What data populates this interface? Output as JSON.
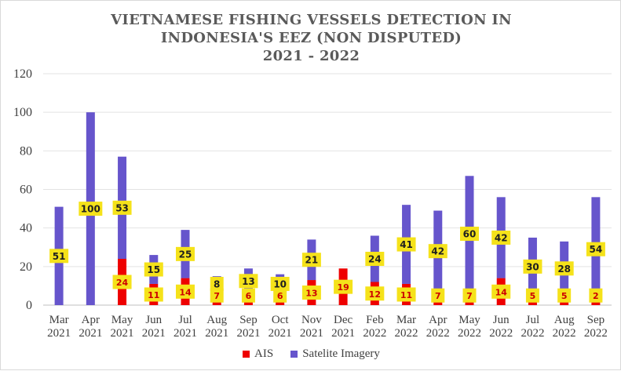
{
  "colors": {
    "ais": "#ee0000",
    "satellite": "#6655cc",
    "label_bg": "#f5e21a",
    "grid": "#e3e3e3"
  },
  "chart_data": {
    "type": "bar",
    "title_lines": [
      "VIETNAMESE FISHING VESSELS DETECTION IN",
      "INDONESIA'S EEZ (NON DISPUTED)",
      "2021 - 2022"
    ],
    "xlabel": "",
    "ylabel": "",
    "ylim": [
      0,
      120
    ],
    "yticks": [
      0,
      20,
      40,
      60,
      80,
      100,
      120
    ],
    "grid": true,
    "legend_position": "bottom",
    "categories": [
      [
        "Mar",
        "2021"
      ],
      [
        "Apr",
        "2021"
      ],
      [
        "May",
        "2021"
      ],
      [
        "Jun",
        "2021"
      ],
      [
        "Jul",
        "2021"
      ],
      [
        "Aug",
        "2021"
      ],
      [
        "Sep",
        "2021"
      ],
      [
        "Oct",
        "2021"
      ],
      [
        "Nov",
        "2021"
      ],
      [
        "Dec",
        "2021"
      ],
      [
        "Feb",
        "2022"
      ],
      [
        "Mar",
        "2022"
      ],
      [
        "Apr",
        "2022"
      ],
      [
        "May",
        "2022"
      ],
      [
        "Jun",
        "2022"
      ],
      [
        "Jul",
        "2022"
      ],
      [
        "Aug",
        "2022"
      ],
      [
        "Sep",
        "2022"
      ]
    ],
    "series": [
      {
        "name": "AIS",
        "values": [
          0,
          0,
          24,
          11,
          14,
          7,
          6,
          6,
          13,
          19,
          12,
          11,
          7,
          7,
          14,
          5,
          5,
          2
        ],
        "labels": [
          null,
          null,
          "24",
          "11",
          "14",
          "7",
          "6",
          "6",
          "13",
          "19",
          "12",
          "11",
          "7",
          "7",
          "14",
          "5",
          "5",
          "2"
        ]
      },
      {
        "name": "Satelite Imagery",
        "values": [
          51,
          100,
          53,
          15,
          25,
          8,
          13,
          10,
          21,
          0,
          24,
          41,
          42,
          60,
          42,
          30,
          28,
          54
        ],
        "labels": [
          "51",
          "100",
          "53",
          "15",
          "25",
          "8",
          "13",
          "10",
          "21",
          null,
          "24",
          "41",
          "42",
          "60",
          "42",
          "30",
          "28",
          "54"
        ]
      }
    ]
  }
}
